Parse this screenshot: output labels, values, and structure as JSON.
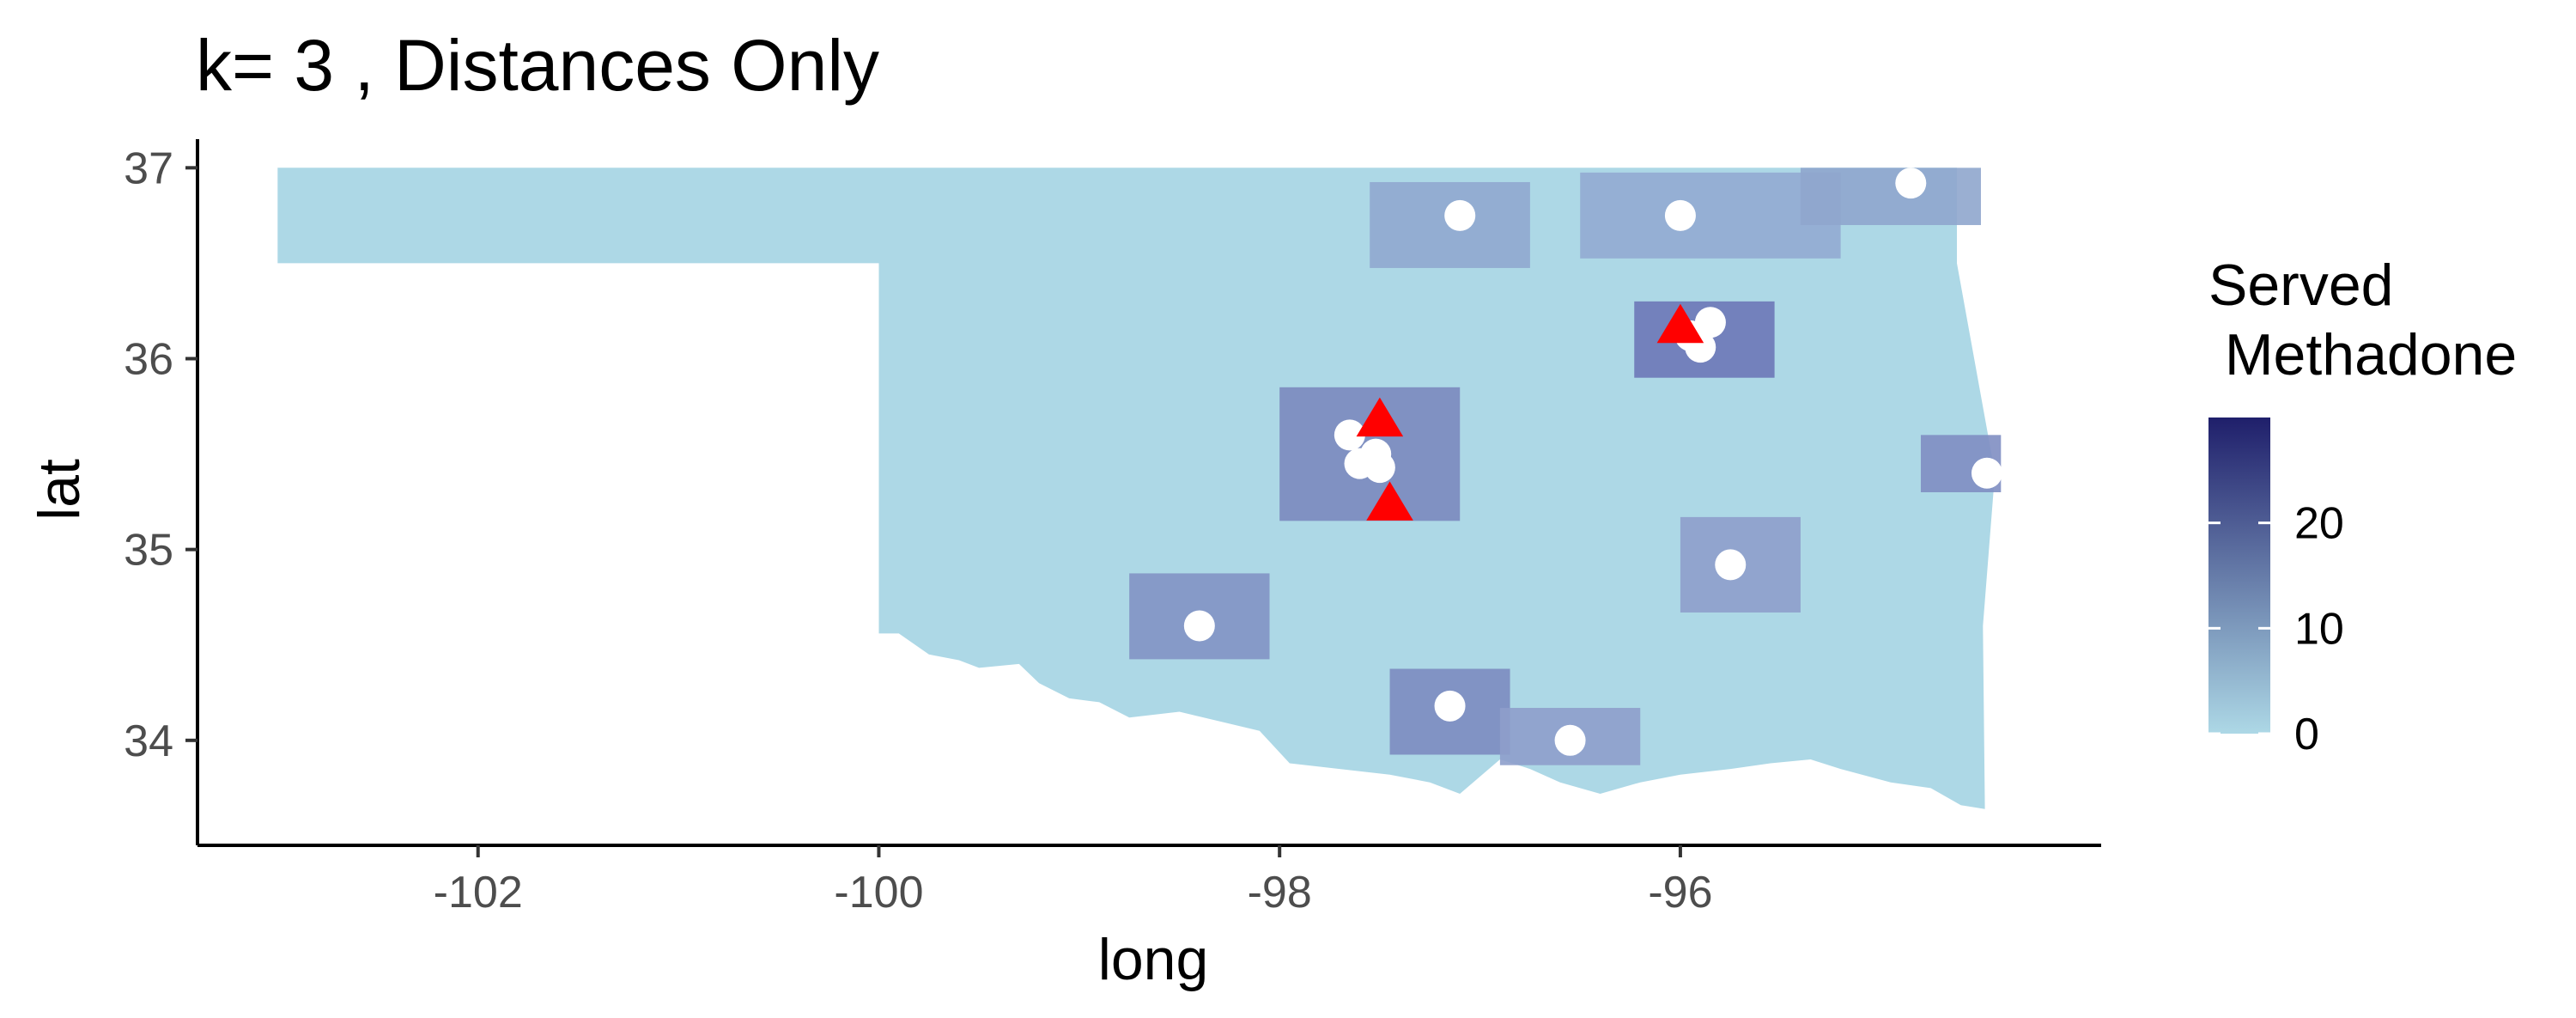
{
  "chart_data": {
    "type": "map",
    "title": "k= 3 , Distances Only",
    "xlabel": "long",
    "ylabel": "lat",
    "xlim": [
      -103.4,
      -93.9
    ],
    "ylim": [
      33.45,
      37.15
    ],
    "x_ticks": [
      -102,
      -100,
      -98,
      -96
    ],
    "x_tick_labels": [
      "-102",
      "-100",
      "-98",
      "-96"
    ],
    "y_ticks": [
      34,
      35,
      36,
      37
    ],
    "y_tick_labels": [
      "34",
      "35",
      "36",
      "37"
    ],
    "grid": false,
    "legend": {
      "title": "Served\n Methadone",
      "position": "right",
      "scale_min": 0,
      "scale_max": 30,
      "color_low": "#add8e6",
      "color_high": "#1f1f6b",
      "breaks": [
        0,
        10,
        20
      ],
      "break_labels": [
        "0",
        "10",
        "20"
      ]
    },
    "state_fill": "#add8e6",
    "service_region_fill": "#8ea4cc",
    "facilities": [
      {
        "long": -97.1,
        "lat": 36.75
      },
      {
        "long": -96.0,
        "lat": 36.75
      },
      {
        "long": -94.85,
        "lat": 36.92
      },
      {
        "long": -95.85,
        "lat": 36.19
      },
      {
        "long": -95.95,
        "lat": 36.12
      },
      {
        "long": -95.9,
        "lat": 36.06
      },
      {
        "long": -97.65,
        "lat": 35.6
      },
      {
        "long": -97.52,
        "lat": 35.5
      },
      {
        "long": -97.6,
        "lat": 35.45
      },
      {
        "long": -97.5,
        "lat": 35.43
      },
      {
        "long": -94.47,
        "lat": 35.4
      },
      {
        "long": -95.75,
        "lat": 34.92
      },
      {
        "long": -98.4,
        "lat": 34.6
      },
      {
        "long": -97.15,
        "lat": 34.18
      },
      {
        "long": -96.55,
        "lat": 34.0
      }
    ],
    "selected_sites": [
      {
        "long": -96.0,
        "lat": 36.17
      },
      {
        "long": -97.5,
        "lat": 35.68
      },
      {
        "long": -97.45,
        "lat": 35.24
      }
    ],
    "marker_colors": {
      "facility": "#ffffff",
      "selected": "#ff0000"
    }
  }
}
